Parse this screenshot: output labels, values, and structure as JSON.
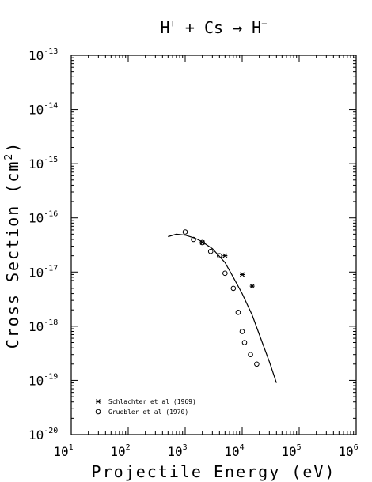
{
  "chart_data": {
    "type": "scatter",
    "title": {
      "base1": "H",
      "sup1": "+",
      "mid": " + Cs → ",
      "base2": "H",
      "sup2": "−"
    },
    "xlabel": "Projectile Energy (eV)",
    "ylabel": "Cross Section (cm",
    "ylabel_sup": "2",
    "ylabel_close": ")",
    "x_scale": "log",
    "y_scale": "log",
    "xlim": [
      10,
      1000000
    ],
    "ylim": [
      1e-20,
      1e-13
    ],
    "grid": false,
    "legend_position": "bottom-left",
    "x_ticks": [
      {
        "base": "10",
        "exp": "1",
        "value": 10
      },
      {
        "base": "10",
        "exp": "2",
        "value": 100
      },
      {
        "base": "10",
        "exp": "3",
        "value": 1000
      },
      {
        "base": "10",
        "exp": "4",
        "value": 10000
      },
      {
        "base": "10",
        "exp": "5",
        "value": 100000
      },
      {
        "base": "10",
        "exp": "6",
        "value": 1000000
      }
    ],
    "y_ticks": [
      {
        "base": "10",
        "exp": "-13",
        "value": 1e-13
      },
      {
        "base": "10",
        "exp": "-14",
        "value": 1e-14
      },
      {
        "base": "10",
        "exp": "-15",
        "value": 1e-15
      },
      {
        "base": "10",
        "exp": "-16",
        "value": 1e-16
      },
      {
        "base": "10",
        "exp": "-17",
        "value": 1e-17
      },
      {
        "base": "10",
        "exp": "-18",
        "value": 1e-18
      },
      {
        "base": "10",
        "exp": "-19",
        "value": 1e-19
      },
      {
        "base": "10",
        "exp": "-20",
        "value": 1e-20
      }
    ],
    "series": [
      {
        "name": "Schlachter et al (1969)",
        "marker": "asterisk",
        "x": [
          2000,
          5000,
          10000,
          15000
        ],
        "y": [
          3.5e-17,
          2e-17,
          9e-18,
          5.5e-18
        ]
      },
      {
        "name": "Gruebler et al (1970)",
        "marker": "circle",
        "x": [
          1000,
          1400,
          2000,
          2800,
          4000,
          5000,
          7000,
          8500,
          10000,
          11000,
          14000,
          18000
        ],
        "y": [
          5.5e-17,
          4e-17,
          3.5e-17,
          2.4e-17,
          2e-17,
          9.5e-18,
          5e-18,
          1.8e-18,
          8e-19,
          5e-19,
          3e-19,
          2e-19
        ]
      },
      {
        "marker": "line",
        "x": [
          500,
          700,
          1000,
          1500,
          2000,
          3000,
          5000,
          7000,
          10000,
          15000,
          20000,
          30000,
          40000
        ],
        "y": [
          4.5e-17,
          5e-17,
          4.8e-17,
          4.2e-17,
          3.6e-17,
          2.7e-17,
          1.5e-17,
          8e-18,
          4e-18,
          1.6e-18,
          7e-19,
          2.2e-19,
          9e-20
        ]
      }
    ]
  }
}
